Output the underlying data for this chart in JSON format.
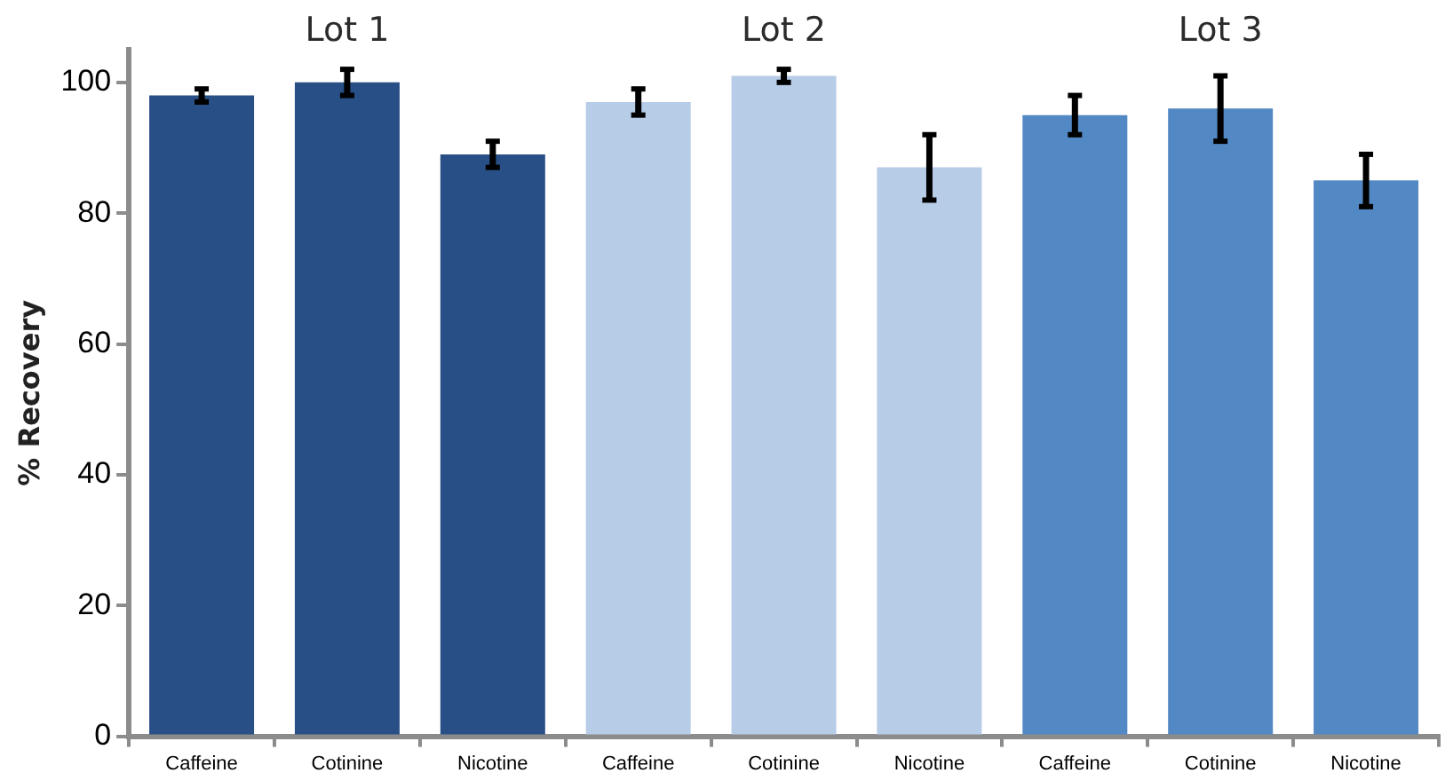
{
  "chart_data": {
    "type": "bar",
    "ylabel": "% Recovery",
    "categories": [
      "Caffeine",
      "Cotinine",
      "Nicotine",
      "Caffeine",
      "Cotinine",
      "Nicotine",
      "Caffeine",
      "Cotinine",
      "Nicotine"
    ],
    "values": [
      98,
      100,
      89,
      97,
      101,
      87,
      95,
      96,
      85
    ],
    "errors": [
      1,
      2,
      2,
      2,
      1,
      5,
      3,
      5,
      4
    ],
    "colors": [
      "#284f86",
      "#284f86",
      "#284f86",
      "#b7cce7",
      "#b7cce7",
      "#b7cce7",
      "#5288c3",
      "#5288c3",
      "#5288c3"
    ],
    "annotations": [
      "Lot 1",
      "Lot 2",
      "Lot 3"
    ],
    "ylim": [
      0,
      105
    ],
    "yticks": [
      0,
      20,
      40,
      60,
      80,
      100
    ],
    "grid": false,
    "legend": false
  }
}
